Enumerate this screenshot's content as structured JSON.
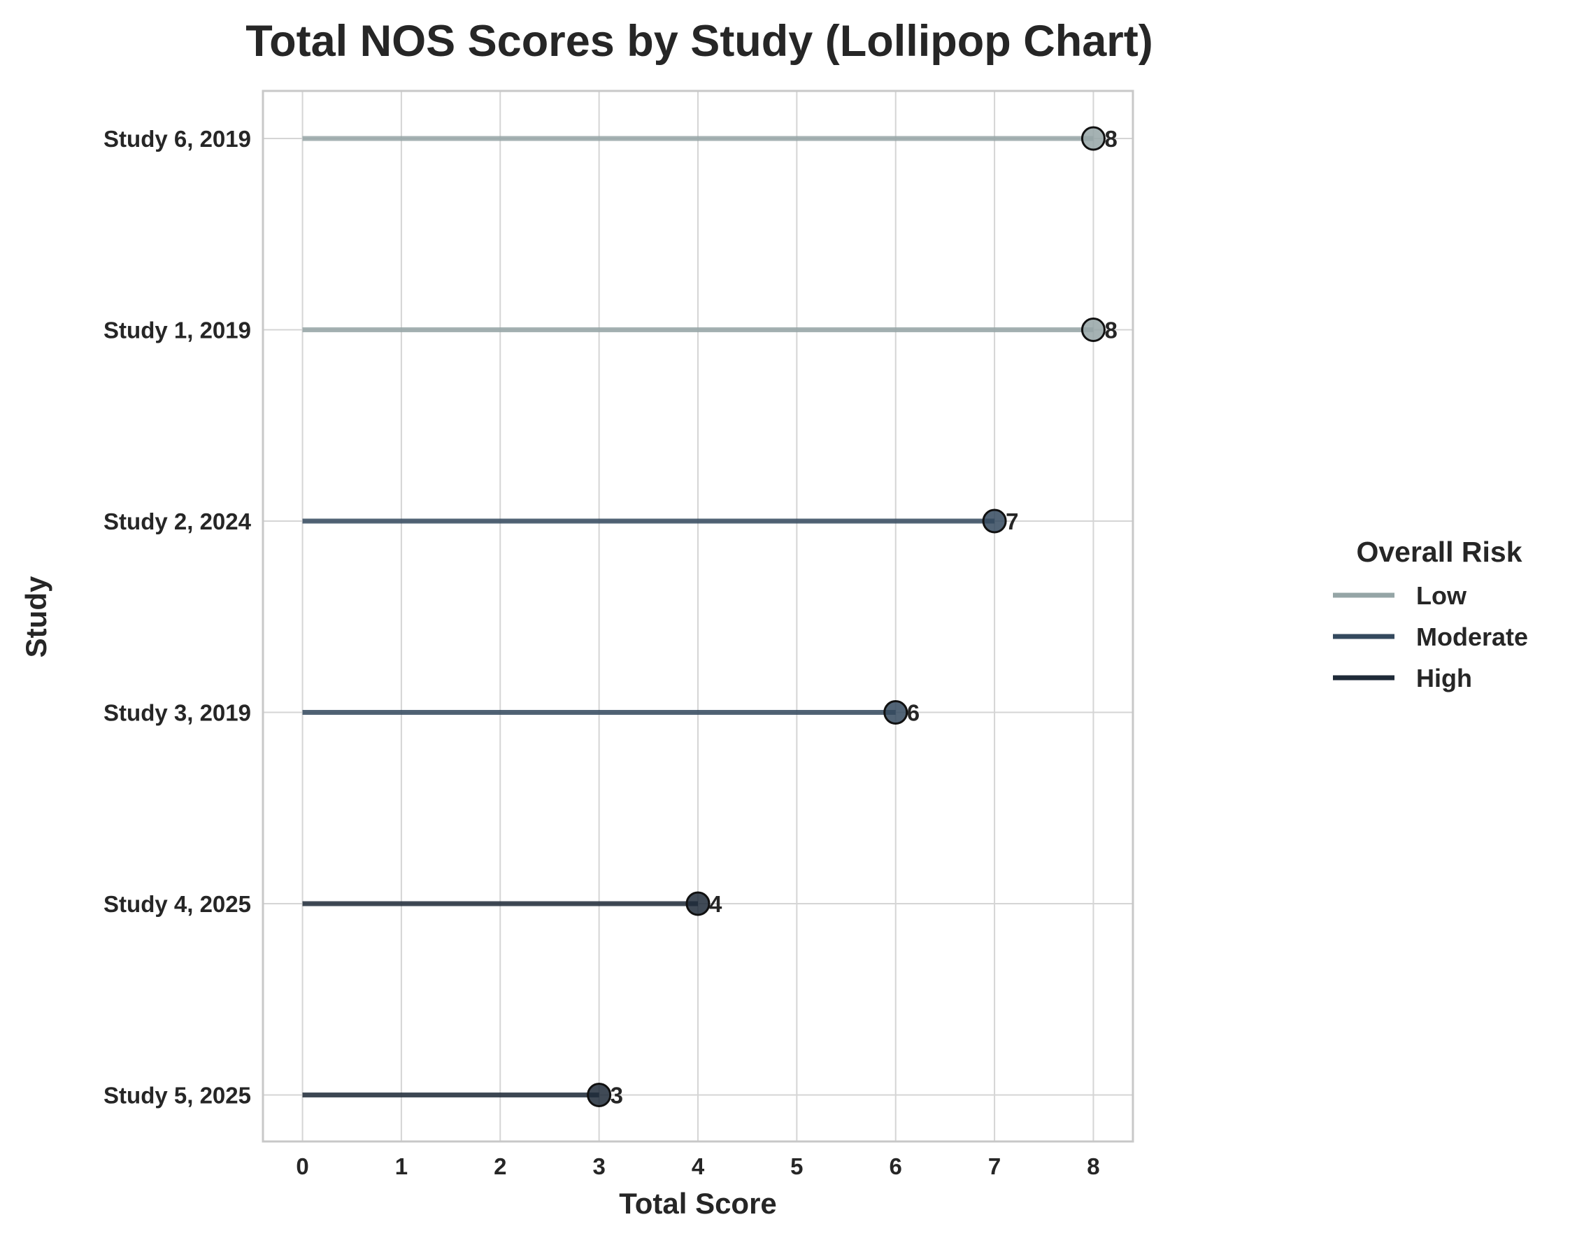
{
  "chart_data": {
    "type": "lollipop",
    "title": "Total NOS Scores by Study (Lollipop Chart)",
    "xlabel": "Total Score",
    "ylabel": "Study",
    "xlim": [
      -0.4,
      8.4
    ],
    "xticks": [
      "0",
      "1",
      "2",
      "3",
      "4",
      "5",
      "6",
      "7",
      "8"
    ],
    "grid": true,
    "legend": {
      "title": "Overall Risk",
      "placement": "right",
      "entries": [
        {
          "label": "Low",
          "color": "#95a5a6"
        },
        {
          "label": "Moderate",
          "color": "#34495e"
        },
        {
          "label": "High",
          "color": "#1f2a38"
        }
      ]
    },
    "studies": [
      {
        "label": "Study 6, 2019",
        "value": 8,
        "value_label": "8",
        "risk": "Low"
      },
      {
        "label": "Study 1, 2019",
        "value": 8,
        "value_label": "8",
        "risk": "Low"
      },
      {
        "label": "Study 2, 2024",
        "value": 7,
        "value_label": "7",
        "risk": "Moderate"
      },
      {
        "label": "Study 3, 2019",
        "value": 6,
        "value_label": "6",
        "risk": "Moderate"
      },
      {
        "label": "Study 4, 2025",
        "value": 4,
        "value_label": "4",
        "risk": "High"
      },
      {
        "label": "Study 5, 2025",
        "value": 3,
        "value_label": "3",
        "risk": "High"
      }
    ]
  }
}
